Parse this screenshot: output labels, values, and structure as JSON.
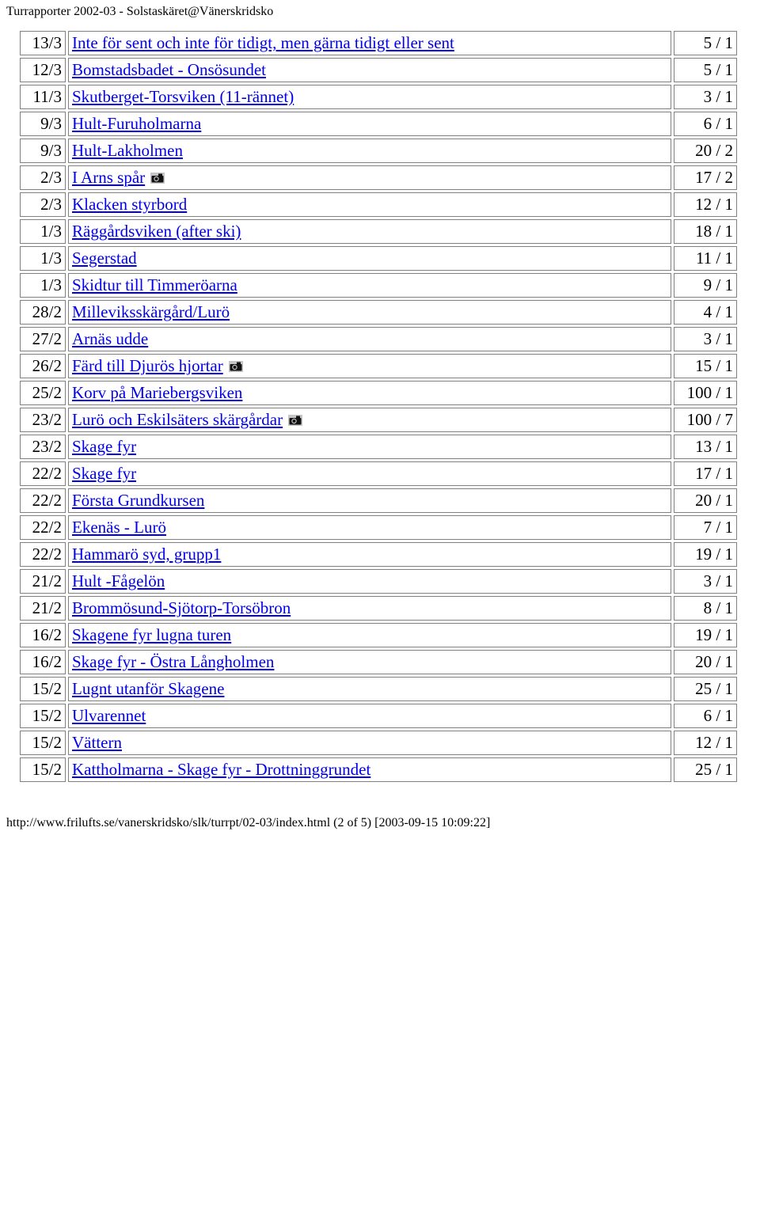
{
  "header_text": "Turrapporter 2002-03 - Solstaskäret@Vänerskridsko",
  "footer_text": "http://www.frilufts.se/vanerskridsko/slk/turrpt/02-03/index.html (2 of 5) [2003-09-15 10:09:22]",
  "colors": {
    "text": "#000000",
    "link": "#0000ee",
    "border": "#808080",
    "background": "#ffffff",
    "camera_bg": "#c6c6c6",
    "camera_dark": "#111111"
  },
  "rows": [
    {
      "date": "13/3",
      "name": "Inte för sent och inte för tidigt, men gärna tidigt eller sent",
      "has_camera": false,
      "score": "5 / 1"
    },
    {
      "date": "12/3",
      "name": "Bomstadsbadet - Onsösundet",
      "has_camera": false,
      "score": "5 / 1"
    },
    {
      "date": "11/3",
      "name": "Skutberget-Torsviken (11-rännet)",
      "has_camera": false,
      "score": "3 / 1"
    },
    {
      "date": "9/3",
      "name": "Hult-Furuholmarna",
      "has_camera": false,
      "score": "6 / 1"
    },
    {
      "date": "9/3",
      "name": "Hult-Lakholmen",
      "has_camera": false,
      "score": "20 / 2"
    },
    {
      "date": "2/3",
      "name": "I Arns spår",
      "has_camera": true,
      "score": "17 / 2"
    },
    {
      "date": "2/3",
      "name": "Klacken styrbord",
      "has_camera": false,
      "score": "12 / 1"
    },
    {
      "date": "1/3",
      "name": "Räggårdsviken (after ski)",
      "has_camera": false,
      "score": "18 / 1"
    },
    {
      "date": "1/3",
      "name": "Segerstad",
      "has_camera": false,
      "score": "11 / 1"
    },
    {
      "date": "1/3",
      "name": "Skidtur till Timmeröarna",
      "has_camera": false,
      "score": "9 / 1"
    },
    {
      "date": "28/2",
      "name": "Milleviksskärgård/Lurö",
      "has_camera": false,
      "score": "4 / 1"
    },
    {
      "date": "27/2",
      "name": "Arnäs udde",
      "has_camera": false,
      "score": "3 / 1"
    },
    {
      "date": "26/2",
      "name": "Färd till Djurös hjortar",
      "has_camera": true,
      "score": "15 / 1"
    },
    {
      "date": "25/2",
      "name": "Korv på Mariebergsviken",
      "has_camera": false,
      "score": "100 / 1"
    },
    {
      "date": "23/2",
      "name": "Lurö och Eskilsäters skärgårdar",
      "has_camera": true,
      "score": "100 / 7"
    },
    {
      "date": "23/2",
      "name": "Skage fyr",
      "has_camera": false,
      "score": "13 / 1"
    },
    {
      "date": "22/2",
      "name": "Skage fyr",
      "has_camera": false,
      "score": "17 / 1"
    },
    {
      "date": "22/2",
      "name": "Första Grundkursen",
      "has_camera": false,
      "score": "20 / 1"
    },
    {
      "date": "22/2",
      "name": "Ekenäs - Lurö",
      "has_camera": false,
      "score": "7 / 1"
    },
    {
      "date": "22/2",
      "name": "Hammarö syd, grupp1",
      "has_camera": false,
      "score": "19 / 1"
    },
    {
      "date": "21/2",
      "name": "Hult -Fågelön",
      "has_camera": false,
      "score": "3 / 1"
    },
    {
      "date": "21/2",
      "name": "Brommösund-Sjötorp-Torsöbron",
      "has_camera": false,
      "score": "8 / 1"
    },
    {
      "date": "16/2",
      "name": "Skagene fyr lugna turen",
      "has_camera": false,
      "score": "19 / 1"
    },
    {
      "date": "16/2",
      "name": "Skage fyr - Östra Långholmen",
      "has_camera": false,
      "score": "20 / 1"
    },
    {
      "date": "15/2",
      "name": "Lugnt utanför Skagene",
      "has_camera": false,
      "score": "25 / 1"
    },
    {
      "date": "15/2",
      "name": "Ulvarennet",
      "has_camera": false,
      "score": "6 / 1"
    },
    {
      "date": "15/2",
      "name": "Vättern",
      "has_camera": false,
      "score": "12 / 1"
    },
    {
      "date": "15/2",
      "name": "Kattholmarna - Skage fyr - Drottninggrundet",
      "has_camera": false,
      "score": "25 / 1"
    }
  ]
}
